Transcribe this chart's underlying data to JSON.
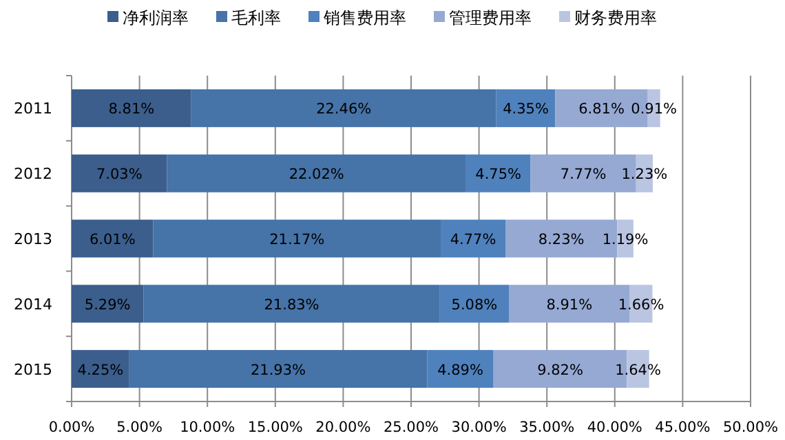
{
  "chart_data": {
    "type": "bar",
    "orientation": "horizontal",
    "stacked": true,
    "legend": "top",
    "grid": "x",
    "categories": [
      "2011",
      "2012",
      "2013",
      "2014",
      "2015"
    ],
    "series": [
      {
        "name": "净利润率",
        "color": "#3b5e8c",
        "values": [
          8.81,
          7.03,
          6.01,
          5.29,
          4.25
        ],
        "value_labels": [
          "8.81%",
          "7.03%",
          "6.01%",
          "5.29%",
          "4.25%"
        ]
      },
      {
        "name": "毛利率",
        "color": "#4673a8",
        "values": [
          22.46,
          22.02,
          21.17,
          21.83,
          21.93
        ],
        "value_labels": [
          "22.46%",
          "22.02%",
          "21.17%",
          "21.83%",
          "21.93%"
        ]
      },
      {
        "name": "销售费用率",
        "color": "#4f81bd",
        "values": [
          4.35,
          4.75,
          4.77,
          5.08,
          4.89
        ],
        "value_labels": [
          "4.35%",
          "4.75%",
          "4.77%",
          "5.08%",
          "4.89%"
        ]
      },
      {
        "name": "管理费用率",
        "color": "#95a9d3",
        "values": [
          6.81,
          7.77,
          8.23,
          8.91,
          9.82
        ],
        "value_labels": [
          "6.81%",
          "7.77%",
          "8.23%",
          "8.91%",
          "9.82%"
        ]
      },
      {
        "name": "财务费用率",
        "color": "#bac5e2",
        "values": [
          0.91,
          1.23,
          1.19,
          1.66,
          1.64
        ],
        "value_labels": [
          "0.91%",
          "1.23%",
          "1.19%",
          "1.66%",
          "1.64%"
        ]
      }
    ],
    "xlim": [
      0,
      50
    ],
    "xticks": [
      {
        "value": 0,
        "label": "0.00%"
      },
      {
        "value": 5,
        "label": "5.00%"
      },
      {
        "value": 10,
        "label": "10.00%"
      },
      {
        "value": 15,
        "label": "15.00%"
      },
      {
        "value": 20,
        "label": "20.00%"
      },
      {
        "value": 25,
        "label": "25.00%"
      },
      {
        "value": 30,
        "label": "30.00%"
      },
      {
        "value": 35,
        "label": "35.00%"
      },
      {
        "value": 40,
        "label": "40.00%"
      },
      {
        "value": 45,
        "label": "45.00%"
      },
      {
        "value": 50,
        "label": "50.00%"
      }
    ]
  }
}
